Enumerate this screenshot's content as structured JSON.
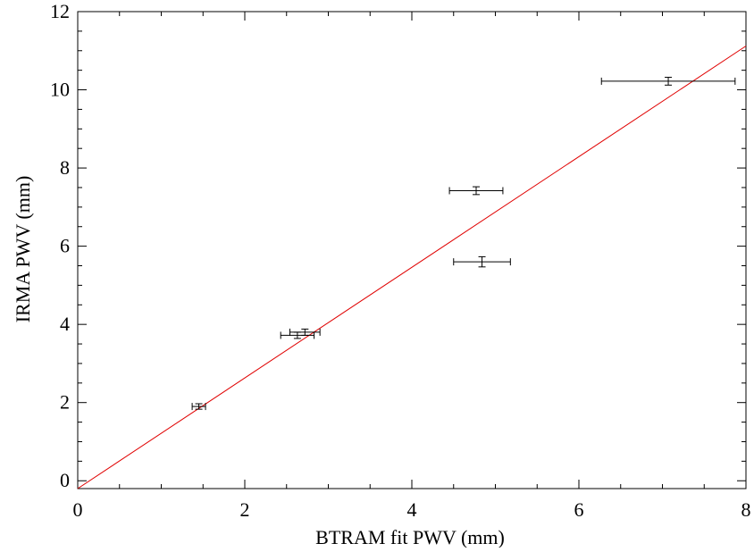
{
  "chart_data": {
    "type": "scatter",
    "title": "",
    "xlabel": "BTRAM fit PWV (mm)",
    "ylabel": "IRMA PWV (mm)",
    "xlim": [
      0,
      8
    ],
    "ylim": [
      -0.2,
      12
    ],
    "x_ticks": [
      0,
      2,
      4,
      6,
      8
    ],
    "x_tick_labels": [
      "0",
      "2",
      "4",
      "6",
      "8"
    ],
    "y_ticks": [
      0,
      2,
      4,
      6,
      8,
      10,
      12
    ],
    "y_tick_labels": [
      "0",
      "2",
      "4",
      "6",
      "8",
      "10",
      "12"
    ],
    "grid": false,
    "legend": "none",
    "series": [
      {
        "kind": "points-with-errorbars",
        "color": "#000000",
        "points": [
          {
            "x": 1.45,
            "y": 1.9,
            "x_err": 0.08,
            "y_err": 0.07
          },
          {
            "x": 2.63,
            "y": 3.72,
            "x_err": 0.2,
            "y_err": 0.08
          },
          {
            "x": 2.72,
            "y": 3.8,
            "x_err": 0.18,
            "y_err": 0.08
          },
          {
            "x": 4.77,
            "y": 7.42,
            "x_err": 0.32,
            "y_err": 0.1
          },
          {
            "x": 4.84,
            "y": 5.6,
            "x_err": 0.34,
            "y_err": 0.13
          },
          {
            "x": 7.07,
            "y": 10.22,
            "x_err": 0.8,
            "y_err": 0.1
          }
        ]
      },
      {
        "kind": "fit-line",
        "color": "#e00000",
        "slope": 1.415,
        "intercept": -0.2,
        "x_range": [
          0,
          8
        ]
      }
    ]
  }
}
